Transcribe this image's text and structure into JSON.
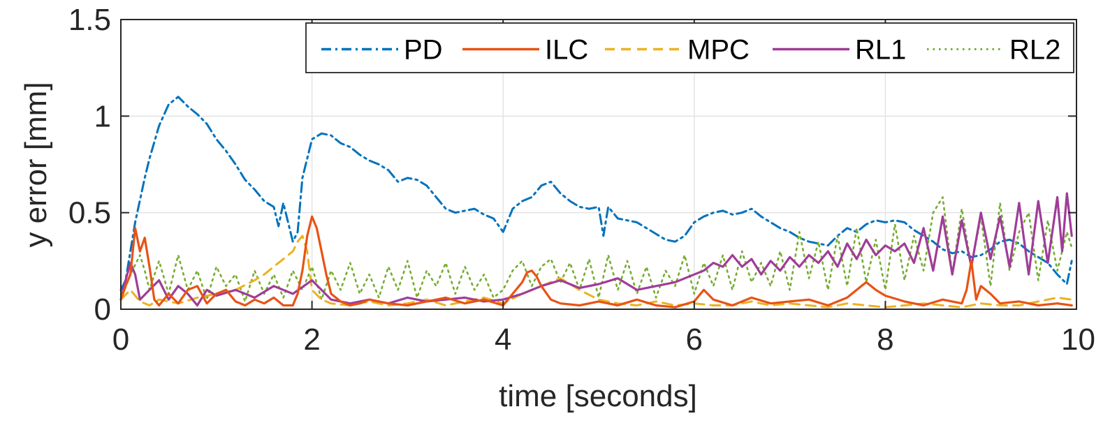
{
  "chart_data": {
    "type": "line",
    "title": "",
    "xlabel": "time [seconds]",
    "ylabel": "y error [mm]",
    "xlim": [
      0,
      10
    ],
    "ylim": [
      0,
      1.5
    ],
    "xticks": [
      0,
      2,
      4,
      6,
      8,
      10
    ],
    "yticks": [
      0,
      0.5,
      1,
      1.5
    ],
    "xtick_labels": [
      "0",
      "2",
      "4",
      "6",
      "8",
      "10"
    ],
    "ytick_labels": [
      "0",
      "0.5",
      "1",
      "1.5"
    ],
    "grid": true,
    "legend_position": "top-right, horizontal",
    "series": [
      {
        "name": "PD",
        "color": "#0072BD",
        "dash": "dashdot",
        "x": [
          0,
          0.05,
          0.15,
          0.25,
          0.3,
          0.4,
          0.5,
          0.6,
          0.7,
          0.8,
          0.9,
          1.0,
          1.1,
          1.2,
          1.3,
          1.4,
          1.5,
          1.6,
          1.65,
          1.7,
          1.8,
          1.85,
          1.9,
          2.0,
          2.1,
          2.2,
          2.3,
          2.4,
          2.5,
          2.6,
          2.7,
          2.8,
          2.9,
          3.0,
          3.1,
          3.2,
          3.3,
          3.4,
          3.5,
          3.6,
          3.7,
          3.8,
          3.9,
          4.0,
          4.1,
          4.2,
          4.3,
          4.4,
          4.5,
          4.6,
          4.7,
          4.8,
          4.9,
          5.0,
          5.05,
          5.1,
          5.2,
          5.3,
          5.4,
          5.5,
          5.6,
          5.7,
          5.8,
          5.9,
          6.0,
          6.1,
          6.2,
          6.3,
          6.4,
          6.5,
          6.6,
          6.7,
          6.8,
          6.9,
          7.0,
          7.1,
          7.2,
          7.3,
          7.4,
          7.5,
          7.6,
          7.7,
          7.8,
          7.9,
          8.0,
          8.1,
          8.2,
          8.3,
          8.4,
          8.5,
          8.6,
          8.7,
          8.8,
          8.9,
          9.0,
          9.1,
          9.2,
          9.3,
          9.4,
          9.5,
          9.6,
          9.7,
          9.8,
          9.9,
          9.95
        ],
        "y": [
          0.1,
          0.15,
          0.45,
          0.68,
          0.78,
          0.95,
          1.06,
          1.1,
          1.05,
          1.01,
          0.96,
          0.88,
          0.82,
          0.75,
          0.67,
          0.62,
          0.56,
          0.53,
          0.43,
          0.55,
          0.35,
          0.4,
          0.68,
          0.88,
          0.91,
          0.9,
          0.86,
          0.84,
          0.8,
          0.77,
          0.75,
          0.72,
          0.66,
          0.68,
          0.67,
          0.64,
          0.58,
          0.52,
          0.5,
          0.51,
          0.52,
          0.49,
          0.47,
          0.4,
          0.52,
          0.56,
          0.58,
          0.64,
          0.66,
          0.6,
          0.56,
          0.53,
          0.52,
          0.53,
          0.38,
          0.53,
          0.47,
          0.46,
          0.45,
          0.42,
          0.39,
          0.36,
          0.35,
          0.38,
          0.45,
          0.48,
          0.5,
          0.51,
          0.49,
          0.5,
          0.52,
          0.48,
          0.45,
          0.42,
          0.4,
          0.37,
          0.35,
          0.34,
          0.33,
          0.38,
          0.42,
          0.4,
          0.44,
          0.46,
          0.45,
          0.46,
          0.45,
          0.41,
          0.38,
          0.35,
          0.31,
          0.29,
          0.3,
          0.27,
          0.28,
          0.31,
          0.35,
          0.36,
          0.34,
          0.3,
          0.27,
          0.24,
          0.18,
          0.13,
          0.25
        ]
      },
      {
        "name": "ILC",
        "color": "#E85314",
        "dash": "solid",
        "x": [
          0,
          0.05,
          0.1,
          0.15,
          0.2,
          0.25,
          0.3,
          0.35,
          0.4,
          0.5,
          0.6,
          0.7,
          0.8,
          0.9,
          1.0,
          1.1,
          1.2,
          1.3,
          1.4,
          1.5,
          1.6,
          1.7,
          1.8,
          1.85,
          1.9,
          1.95,
          2.0,
          2.05,
          2.1,
          2.15,
          2.2,
          2.3,
          2.4,
          2.5,
          2.6,
          2.8,
          3.0,
          3.2,
          3.4,
          3.6,
          3.8,
          4.0,
          4.1,
          4.2,
          4.25,
          4.3,
          4.35,
          4.4,
          4.5,
          4.6,
          4.8,
          5.0,
          5.2,
          5.4,
          5.6,
          5.8,
          6.0,
          6.1,
          6.2,
          6.4,
          6.6,
          6.8,
          7.0,
          7.2,
          7.4,
          7.6,
          7.7,
          7.8,
          7.9,
          8.0,
          8.2,
          8.4,
          8.6,
          8.8,
          8.85,
          8.9,
          8.95,
          9.0,
          9.1,
          9.2,
          9.4,
          9.6,
          9.8,
          9.95
        ],
        "y": [
          0.05,
          0.12,
          0.18,
          0.42,
          0.3,
          0.37,
          0.22,
          0.05,
          0.02,
          0.08,
          0.03,
          0.1,
          0.12,
          0.03,
          0.08,
          0.1,
          0.04,
          0.02,
          0.05,
          0.03,
          0.06,
          0.02,
          0.02,
          0.08,
          0.2,
          0.38,
          0.48,
          0.42,
          0.3,
          0.18,
          0.08,
          0.04,
          0.02,
          0.03,
          0.05,
          0.03,
          0.02,
          0.04,
          0.06,
          0.03,
          0.05,
          0.02,
          0.08,
          0.14,
          0.19,
          0.2,
          0.17,
          0.12,
          0.05,
          0.03,
          0.02,
          0.04,
          0.02,
          0.05,
          0.02,
          0.01,
          0.04,
          0.1,
          0.05,
          0.02,
          0.06,
          0.03,
          0.04,
          0.05,
          0.02,
          0.06,
          0.1,
          0.14,
          0.1,
          0.07,
          0.04,
          0.02,
          0.05,
          0.03,
          0.1,
          0.25,
          0.05,
          0.12,
          0.08,
          0.03,
          0.04,
          0.02,
          0.03,
          0.02
        ]
      },
      {
        "name": "MPC",
        "color": "#EDB120",
        "dash": "dashed",
        "x": [
          0,
          0.1,
          0.2,
          0.3,
          0.4,
          0.6,
          0.8,
          1.0,
          1.2,
          1.4,
          1.5,
          1.6,
          1.7,
          1.8,
          1.85,
          1.9,
          1.95,
          2.0,
          2.1,
          2.2,
          2.4,
          2.6,
          2.8,
          3.0,
          3.2,
          3.4,
          3.6,
          3.8,
          4.0,
          4.2,
          4.4,
          4.6,
          4.8,
          5.0,
          5.2,
          5.4,
          5.6,
          5.8,
          6.0,
          6.2,
          6.4,
          6.6,
          6.8,
          7.0,
          7.2,
          7.4,
          7.6,
          7.8,
          8.0,
          8.2,
          8.4,
          8.6,
          8.8,
          9.0,
          9.2,
          9.4,
          9.6,
          9.8,
          9.95
        ],
        "y": [
          0.05,
          0.1,
          0.04,
          0.02,
          0.05,
          0.03,
          0.06,
          0.08,
          0.1,
          0.15,
          0.18,
          0.22,
          0.26,
          0.3,
          0.35,
          0.38,
          0.3,
          0.1,
          0.05,
          0.03,
          0.02,
          0.04,
          0.02,
          0.03,
          0.05,
          0.02,
          0.04,
          0.06,
          0.03,
          0.08,
          0.12,
          0.16,
          0.1,
          0.05,
          0.03,
          0.02,
          0.04,
          0.02,
          0.03,
          0.02,
          0.02,
          0.04,
          0.02,
          0.03,
          0.02,
          0.01,
          0.03,
          0.02,
          0.01,
          0.02,
          0.03,
          0.02,
          0.01,
          0.03,
          0.02,
          0.02,
          0.04,
          0.06,
          0.05
        ]
      },
      {
        "name": "RL1",
        "color": "#A03C98",
        "dash": "solid",
        "x": [
          0,
          0.05,
          0.1,
          0.15,
          0.2,
          0.3,
          0.4,
          0.5,
          0.6,
          0.7,
          0.8,
          0.9,
          1.0,
          1.2,
          1.4,
          1.6,
          1.8,
          2.0,
          2.2,
          2.4,
          2.6,
          2.8,
          3.0,
          3.2,
          3.4,
          3.6,
          3.8,
          4.0,
          4.2,
          4.4,
          4.6,
          4.8,
          5.0,
          5.2,
          5.4,
          5.6,
          5.8,
          6.0,
          6.1,
          6.2,
          6.3,
          6.4,
          6.5,
          6.6,
          6.7,
          6.8,
          6.9,
          7.0,
          7.1,
          7.2,
          7.3,
          7.4,
          7.5,
          7.6,
          7.7,
          7.8,
          7.9,
          8.0,
          8.1,
          8.2,
          8.3,
          8.4,
          8.5,
          8.6,
          8.7,
          8.8,
          8.9,
          9.0,
          9.1,
          9.2,
          9.3,
          9.4,
          9.5,
          9.6,
          9.7,
          9.8,
          9.85,
          9.9,
          9.95
        ],
        "y": [
          0.05,
          0.15,
          0.24,
          0.18,
          0.05,
          0.1,
          0.15,
          0.05,
          0.12,
          0.08,
          0.02,
          0.1,
          0.07,
          0.1,
          0.06,
          0.12,
          0.08,
          0.15,
          0.05,
          0.03,
          0.05,
          0.03,
          0.06,
          0.04,
          0.05,
          0.06,
          0.04,
          0.05,
          0.08,
          0.12,
          0.15,
          0.11,
          0.13,
          0.16,
          0.1,
          0.12,
          0.14,
          0.18,
          0.2,
          0.24,
          0.22,
          0.28,
          0.22,
          0.26,
          0.18,
          0.25,
          0.2,
          0.27,
          0.22,
          0.28,
          0.24,
          0.3,
          0.22,
          0.34,
          0.26,
          0.36,
          0.28,
          0.33,
          0.3,
          0.34,
          0.24,
          0.42,
          0.2,
          0.48,
          0.18,
          0.46,
          0.22,
          0.5,
          0.26,
          0.48,
          0.22,
          0.55,
          0.18,
          0.56,
          0.24,
          0.58,
          0.3,
          0.6,
          0.38
        ]
      },
      {
        "name": "RL2",
        "color": "#77AC30",
        "dash": "dotted",
        "x": [
          0,
          0.1,
          0.2,
          0.25,
          0.3,
          0.4,
          0.5,
          0.6,
          0.7,
          0.8,
          0.9,
          1.0,
          1.1,
          1.2,
          1.3,
          1.4,
          1.5,
          1.6,
          1.7,
          1.8,
          1.9,
          2.0,
          2.1,
          2.2,
          2.3,
          2.4,
          2.5,
          2.6,
          2.7,
          2.8,
          2.9,
          3.0,
          3.1,
          3.2,
          3.3,
          3.4,
          3.5,
          3.6,
          3.7,
          3.8,
          3.9,
          4.0,
          4.1,
          4.2,
          4.3,
          4.4,
          4.5,
          4.6,
          4.7,
          4.8,
          4.9,
          5.0,
          5.1,
          5.2,
          5.3,
          5.4,
          5.5,
          5.6,
          5.7,
          5.8,
          5.9,
          6.0,
          6.1,
          6.2,
          6.3,
          6.4,
          6.5,
          6.6,
          6.7,
          6.8,
          6.9,
          7.0,
          7.1,
          7.2,
          7.3,
          7.4,
          7.5,
          7.6,
          7.7,
          7.8,
          7.9,
          8.0,
          8.1,
          8.2,
          8.3,
          8.4,
          8.5,
          8.6,
          8.7,
          8.8,
          8.9,
          9.0,
          9.1,
          9.2,
          9.3,
          9.4,
          9.5,
          9.6,
          9.7,
          9.8,
          9.9,
          9.95
        ],
        "y": [
          0.05,
          0.18,
          0.28,
          0.2,
          0.1,
          0.25,
          0.08,
          0.28,
          0.1,
          0.2,
          0.05,
          0.22,
          0.12,
          0.18,
          0.04,
          0.2,
          0.08,
          0.18,
          0.06,
          0.2,
          0.1,
          0.22,
          0.05,
          0.2,
          0.1,
          0.24,
          0.08,
          0.18,
          0.06,
          0.22,
          0.1,
          0.25,
          0.06,
          0.2,
          0.12,
          0.24,
          0.08,
          0.22,
          0.1,
          0.18,
          0.06,
          0.1,
          0.2,
          0.25,
          0.12,
          0.22,
          0.26,
          0.14,
          0.24,
          0.1,
          0.26,
          0.06,
          0.28,
          0.1,
          0.25,
          0.08,
          0.22,
          0.06,
          0.2,
          0.12,
          0.28,
          0.08,
          0.24,
          0.12,
          0.28,
          0.1,
          0.3,
          0.14,
          0.24,
          0.12,
          0.3,
          0.1,
          0.4,
          0.16,
          0.35,
          0.1,
          0.38,
          0.12,
          0.42,
          0.14,
          0.36,
          0.1,
          0.44,
          0.15,
          0.38,
          0.2,
          0.5,
          0.58,
          0.18,
          0.52,
          0.22,
          0.48,
          0.12,
          0.55,
          0.2,
          0.4,
          0.5,
          0.15,
          0.46,
          0.2,
          0.4,
          0.32
        ]
      }
    ]
  }
}
